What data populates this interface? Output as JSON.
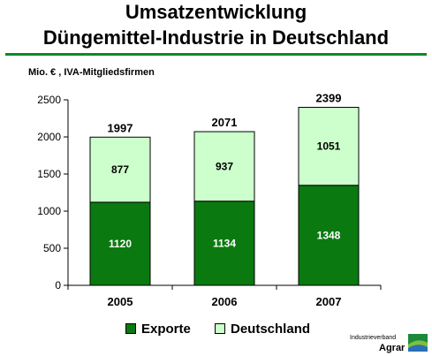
{
  "title_line1": "Umsatzentwicklung",
  "title_line2": "Düngemittel-Industrie in Deutschland",
  "unit_label": "Mio. € , IVA-Mitgliedsfirmen",
  "colors": {
    "exporte": "#0a7a10",
    "deutschland": "#ccffcc",
    "rule": "#0a8a2a"
  },
  "chart_data": {
    "type": "bar",
    "stacked": true,
    "categories": [
      "2005",
      "2006",
      "2007"
    ],
    "series": [
      {
        "name": "Exporte",
        "values": [
          1120,
          1134,
          1348
        ]
      },
      {
        "name": "Deutschland",
        "values": [
          877,
          937,
          1051
        ]
      }
    ],
    "totals": [
      1997,
      2071,
      2399
    ],
    "yticks": [
      0,
      500,
      1000,
      1500,
      2000,
      2500
    ],
    "ylim": [
      0,
      2500
    ],
    "grid": false,
    "legend": "bottom"
  },
  "legend": {
    "exporte": "Exporte",
    "deutschland": "Deutschland"
  },
  "logo": {
    "top": "Industrieverband",
    "main": "Agrar"
  }
}
